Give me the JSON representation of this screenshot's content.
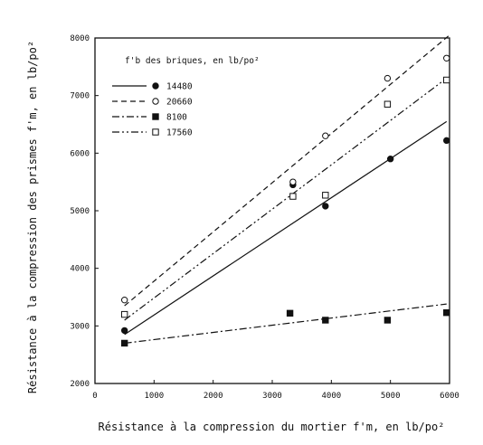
{
  "chart_data": {
    "type": "scatter",
    "xlabel": "Résistance à la compression du mortier f'm, en lb/po²",
    "ylabel": "Résistance à la compression des prismes f'm, en lb/po²",
    "xlim": [
      0,
      6000
    ],
    "ylim": [
      2000,
      8000
    ],
    "x_ticks": [
      "0",
      "1000",
      "2000",
      "3000",
      "4000",
      "5000",
      "6000"
    ],
    "y_ticks": [
      "2000",
      "3000",
      "4000",
      "5000",
      "6000",
      "7000",
      "8000"
    ],
    "grid": false,
    "legend_title": "f'b des briques, en lb/po²",
    "legend_position": "top-left",
    "series": [
      {
        "name": "14480",
        "marker": "filled-circle",
        "line": "solid",
        "points": [
          [
            500,
            2920
          ],
          [
            3350,
            5450
          ],
          [
            3900,
            5080
          ],
          [
            5000,
            5900
          ],
          [
            5950,
            6220
          ]
        ],
        "fit": [
          [
            500,
            2850
          ],
          [
            5950,
            6550
          ]
        ]
      },
      {
        "name": "20660",
        "marker": "open-circle",
        "line": "dashed",
        "points": [
          [
            500,
            3450
          ],
          [
            3350,
            5500
          ],
          [
            3900,
            6300
          ],
          [
            4950,
            7300
          ],
          [
            5950,
            7650
          ]
        ],
        "fit": [
          [
            500,
            3350
          ],
          [
            6000,
            8050
          ]
        ]
      },
      {
        "name": "8100",
        "marker": "filled-square",
        "line": "dash-dot",
        "points": [
          [
            500,
            2700
          ],
          [
            3300,
            3220
          ],
          [
            3900,
            3100
          ],
          [
            4950,
            3100
          ],
          [
            5950,
            3230
          ]
        ],
        "fit": [
          [
            500,
            2700
          ],
          [
            5950,
            3380
          ]
        ]
      },
      {
        "name": "17560",
        "marker": "open-square",
        "line": "dash-dot-dot",
        "points": [
          [
            500,
            3200
          ],
          [
            3350,
            5250
          ],
          [
            3900,
            5270
          ],
          [
            4950,
            6850
          ],
          [
            5950,
            7270
          ]
        ],
        "fit": [
          [
            500,
            3100
          ],
          [
            5950,
            7300
          ]
        ]
      }
    ]
  }
}
